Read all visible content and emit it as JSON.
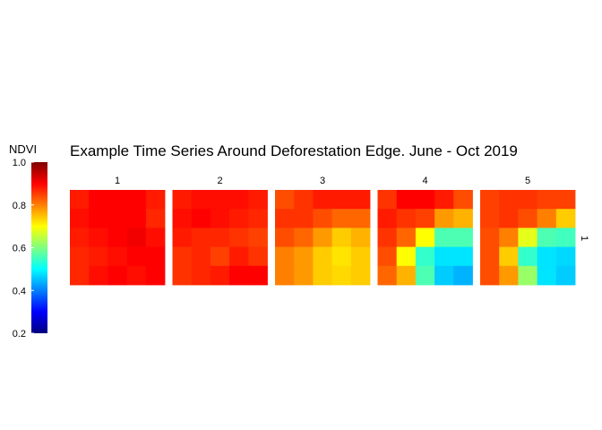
{
  "chart_data": {
    "type": "heatmap",
    "title": "Example Time Series Around Deforestation Edge. June - Oct 2019",
    "legend": {
      "title": "NDVI",
      "placement": "left",
      "range": [
        0.2,
        1.0
      ],
      "ticks": [
        "1.0",
        "0.8",
        "0.6",
        "0.4",
        "0.2"
      ],
      "tick_values": [
        1.0,
        0.8,
        0.6,
        0.4,
        0.2
      ],
      "colormap": "jet"
    },
    "row_strip_label": "1",
    "grid_rows": 5,
    "grid_cols": 5,
    "panels": [
      {
        "label": "1",
        "values": [
          [
            0.88,
            0.9,
            0.9,
            0.9,
            0.88
          ],
          [
            0.89,
            0.9,
            0.9,
            0.9,
            0.87
          ],
          [
            0.88,
            0.89,
            0.9,
            0.91,
            0.89
          ],
          [
            0.87,
            0.88,
            0.89,
            0.9,
            0.9
          ],
          [
            0.87,
            0.89,
            0.9,
            0.89,
            0.9
          ]
        ]
      },
      {
        "label": "2",
        "values": [
          [
            0.88,
            0.89,
            0.89,
            0.89,
            0.88
          ],
          [
            0.89,
            0.9,
            0.89,
            0.88,
            0.87
          ],
          [
            0.88,
            0.87,
            0.87,
            0.86,
            0.85
          ],
          [
            0.86,
            0.87,
            0.85,
            0.88,
            0.86
          ],
          [
            0.86,
            0.87,
            0.88,
            0.9,
            0.9
          ]
        ]
      },
      {
        "label": "3",
        "values": [
          [
            0.84,
            0.86,
            0.88,
            0.88,
            0.88
          ],
          [
            0.86,
            0.86,
            0.84,
            0.82,
            0.82
          ],
          [
            0.84,
            0.82,
            0.78,
            0.74,
            0.76
          ],
          [
            0.8,
            0.78,
            0.74,
            0.72,
            0.74
          ],
          [
            0.8,
            0.78,
            0.74,
            0.73,
            0.74
          ]
        ]
      },
      {
        "label": "4",
        "values": [
          [
            0.86,
            0.9,
            0.9,
            0.88,
            0.84
          ],
          [
            0.88,
            0.86,
            0.85,
            0.78,
            0.76
          ],
          [
            0.86,
            0.82,
            0.7,
            0.56,
            0.56
          ],
          [
            0.84,
            0.7,
            0.54,
            0.48,
            0.48
          ],
          [
            0.82,
            0.76,
            0.56,
            0.46,
            0.44
          ]
        ]
      },
      {
        "label": "5",
        "values": [
          [
            0.85,
            0.86,
            0.86,
            0.85,
            0.85
          ],
          [
            0.85,
            0.86,
            0.84,
            0.8,
            0.74
          ],
          [
            0.84,
            0.8,
            0.68,
            0.56,
            0.55
          ],
          [
            0.84,
            0.74,
            0.54,
            0.48,
            0.47
          ],
          [
            0.84,
            0.78,
            0.62,
            0.48,
            0.46
          ]
        ]
      }
    ]
  }
}
